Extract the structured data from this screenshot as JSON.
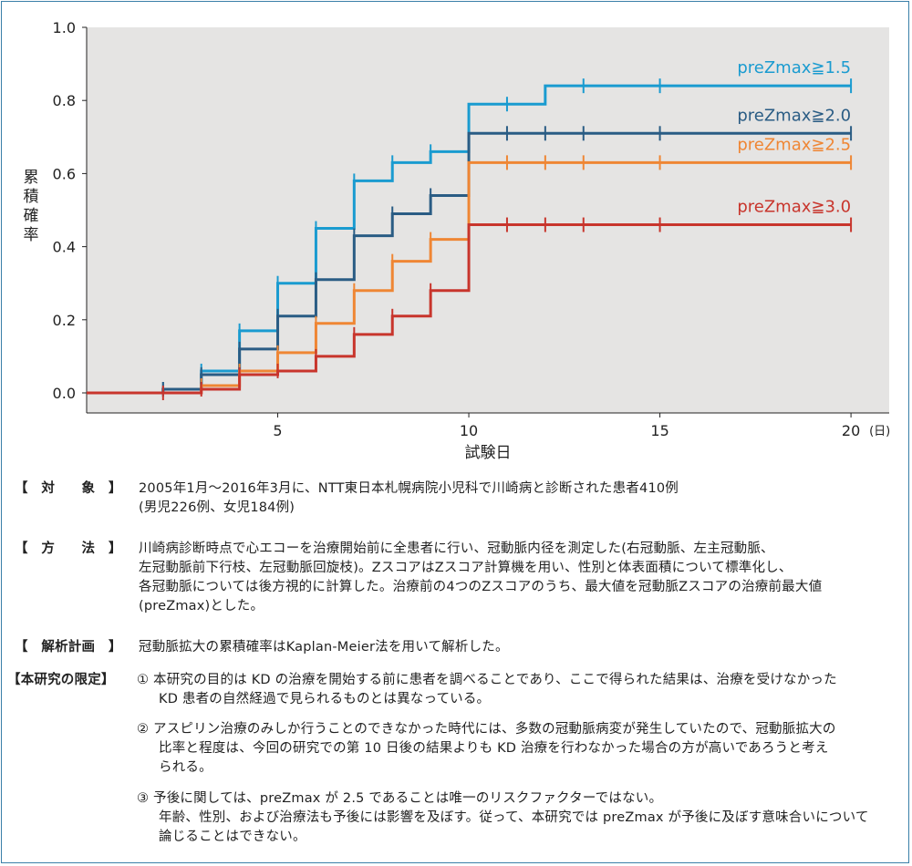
{
  "chart_data": {
    "type": "line",
    "step": true,
    "xlabel": "試験日",
    "xunit": "(日)",
    "ylabel": "累積確率",
    "xlim": [
      0,
      21
    ],
    "ylim": [
      0,
      1.0
    ],
    "xticks": [
      5,
      10,
      15,
      20
    ],
    "yticks": [
      0.0,
      0.2,
      0.4,
      0.6,
      0.8,
      1.0
    ],
    "ytick_labels": [
      "0.0",
      "0.2",
      "0.4",
      "0.6",
      "0.8",
      "1.0"
    ],
    "grid": false,
    "background": "#e5e4e3",
    "series": [
      {
        "name": "preZmax≧1.5",
        "color": "#1a9bd0",
        "steps": [
          [
            0,
            0
          ],
          [
            2,
            0.01
          ],
          [
            3,
            0.06
          ],
          [
            4,
            0.17
          ],
          [
            5,
            0.3
          ],
          [
            6,
            0.45
          ],
          [
            7,
            0.58
          ],
          [
            8,
            0.63
          ],
          [
            9,
            0.66
          ],
          [
            10,
            0.79
          ],
          [
            12,
            0.84
          ],
          [
            20,
            0.84
          ]
        ],
        "censor": [
          2,
          3,
          4,
          5,
          6,
          7,
          8,
          9,
          11,
          13,
          15,
          20
        ]
      },
      {
        "name": "preZmax≧2.0",
        "color": "#2a5c84",
        "steps": [
          [
            0,
            0
          ],
          [
            2,
            0.01
          ],
          [
            3,
            0.05
          ],
          [
            4,
            0.12
          ],
          [
            5,
            0.21
          ],
          [
            6,
            0.31
          ],
          [
            7,
            0.43
          ],
          [
            8,
            0.49
          ],
          [
            9,
            0.54
          ],
          [
            10,
            0.71
          ],
          [
            20,
            0.71
          ]
        ],
        "censor": [
          2,
          3,
          4,
          5,
          6,
          7,
          8,
          9,
          11,
          12,
          13,
          15,
          20
        ]
      },
      {
        "name": "preZmax≧2.5",
        "color": "#ef8634",
        "steps": [
          [
            0,
            0
          ],
          [
            3,
            0.02
          ],
          [
            4,
            0.06
          ],
          [
            5,
            0.11
          ],
          [
            6,
            0.19
          ],
          [
            7,
            0.28
          ],
          [
            8,
            0.36
          ],
          [
            9,
            0.42
          ],
          [
            10,
            0.63
          ],
          [
            20,
            0.63
          ]
        ],
        "censor": [
          3,
          4,
          5,
          6,
          7,
          8,
          9,
          11,
          12,
          13,
          15,
          20
        ]
      },
      {
        "name": "preZmax≧3.0",
        "color": "#c8352c",
        "steps": [
          [
            0,
            0
          ],
          [
            3,
            0.01
          ],
          [
            4,
            0.05
          ],
          [
            5,
            0.06
          ],
          [
            6,
            0.1
          ],
          [
            7,
            0.16
          ],
          [
            8,
            0.21
          ],
          [
            9,
            0.28
          ],
          [
            10,
            0.46
          ],
          [
            20,
            0.46
          ]
        ],
        "censor": [
          2,
          3,
          4,
          5,
          6,
          7,
          8,
          9,
          11,
          12,
          13,
          15,
          20
        ]
      }
    ]
  },
  "notes": {
    "subject": {
      "label": "【　対　　象　】",
      "lines": [
        "2005年1月〜2016年3月に、NTT東日本札幌病院小児科で川崎病と診断された患者410例",
        "(男児226例、女児184例)"
      ]
    },
    "method": {
      "label": "【　方　　法　】",
      "lines": [
        "川崎病診断時点で心エコーを治療開始前に全患者に行い、冠動脈内径を測定した(右冠動脈、左主冠動脈、",
        "左冠動脈前下行枝、左冠動脈回旋枝)。ZスコアはZスコア計算機を用い、性別と体表面積について標準化し、",
        "各冠動脈については後方視的に計算した。治療前の4つのZスコアのうち、最大値を冠動脈Zスコアの治療前最大値",
        "(preZmax)とした。"
      ]
    },
    "analysis": {
      "label": "【　解析計画　】",
      "lines": [
        "冠動脈拡大の累積確率はKaplan-Meier法を用いて解析した。"
      ]
    },
    "limitations": {
      "label": "【本研究の限定】",
      "items": [
        [
          "① 本研究の目的は KD の治療を開始する前に患者を調べることであり、ここで得られた結果は、治療を受けなかった",
          "KD 患者の自然経過で見られるものとは異なっている。"
        ],
        [
          "② アスピリン治療のみしか行うことのできなかった時代には、多数の冠動脈病変が発生していたので、冠動脈拡大の",
          "比率と程度は、今回の研究での第 10 日後の結果よりも KD 治療を行わなかった場合の方が高いであろうと考え",
          "られる。"
        ],
        [
          "③ 予後に関しては、preZmax が 2.5 であることは唯一のリスクファクターではない。",
          "年齢、性別、および治療法も予後には影響を及ぼす。従って、本研究では preZmax が予後に及ぼす意味合いについて",
          "論じることはできない。"
        ]
      ]
    }
  }
}
